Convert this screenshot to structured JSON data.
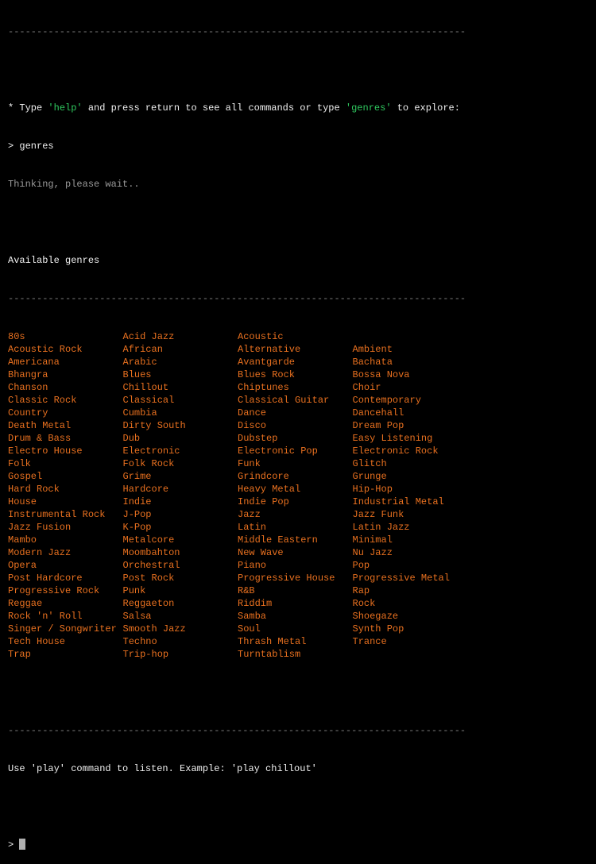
{
  "divider": "--------------------------------------------------------------------------------",
  "intro": {
    "prefix": "* Type ",
    "help_cmd": "'help'",
    "middle": " and press return to see all commands or type ",
    "genres_cmd": "'genres'",
    "suffix": " to explore:"
  },
  "command_entered": "> genres",
  "status": "Thinking, please wait..",
  "section_title": "Available genres",
  "genres": [
    "80s",
    "Acid Jazz",
    "Acoustic",
    "",
    "Acoustic Rock",
    "African",
    "Alternative",
    "Ambient",
    "Americana",
    "Arabic",
    "Avantgarde",
    "Bachata",
    "Bhangra",
    "Blues",
    "Blues Rock",
    "Bossa Nova",
    "Chanson",
    "Chillout",
    "Chiptunes",
    "Choir",
    "Classic Rock",
    "Classical",
    "Classical Guitar",
    "Contemporary",
    "Country",
    "Cumbia",
    "Dance",
    "Dancehall",
    "Death Metal",
    "Dirty South",
    "Disco",
    "Dream Pop",
    "Drum & Bass",
    "Dub",
    "Dubstep",
    "Easy Listening",
    "Electro House",
    "Electronic",
    "Electronic Pop",
    "Electronic Rock",
    "Folk",
    "Folk Rock",
    "Funk",
    "Glitch",
    "Gospel",
    "Grime",
    "Grindcore",
    "Grunge",
    "Hard Rock",
    "Hardcore",
    "Heavy Metal",
    "Hip-Hop",
    "House",
    "Indie",
    "Indie Pop",
    "Industrial Metal",
    "Instrumental Rock",
    "J-Pop",
    "Jazz",
    "Jazz Funk",
    "Jazz Fusion",
    "K-Pop",
    "Latin",
    "Latin Jazz",
    "Mambo",
    "Metalcore",
    "Middle Eastern",
    "Minimal",
    "Modern Jazz",
    "Moombahton",
    "New Wave",
    "Nu Jazz",
    "Opera",
    "Orchestral",
    "Piano",
    "Pop",
    "Post Hardcore",
    "Post Rock",
    "Progressive House",
    "Progressive Metal",
    "Progressive Rock",
    "Punk",
    "R&B",
    "Rap",
    "Reggae",
    "Reggaeton",
    "Riddim",
    "Rock",
    "Rock 'n' Roll",
    "Salsa",
    "Samba",
    "Shoegaze",
    "Singer / Songwriter",
    "Smooth Jazz",
    "Soul",
    "Synth Pop",
    "Tech House",
    "Techno",
    "Thrash Metal",
    "Trance",
    "Trap",
    "Trip-hop",
    "Turntablism",
    ""
  ],
  "hint": "Use 'play' command to listen. Example: 'play chillout'",
  "prompt": ">",
  "colors": {
    "background": "#000000",
    "genre": "#e8701f",
    "command_highlight": "#2fc95f",
    "muted": "#9a9a9a",
    "text": "#f0f0f0"
  }
}
